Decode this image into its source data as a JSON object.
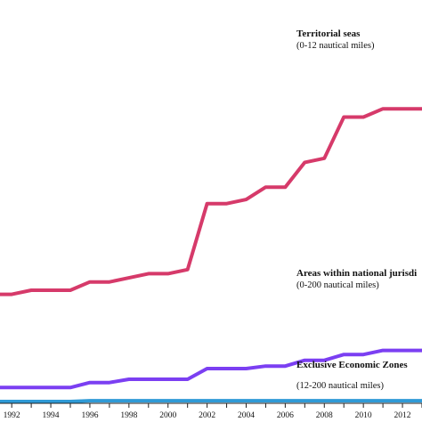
{
  "chart_data": {
    "type": "line",
    "xlim": [
      1991.4,
      2013.0
    ],
    "ylim": [
      0,
      420
    ],
    "x_ticks": [
      1992,
      1994,
      1996,
      1998,
      2000,
      2002,
      2004,
      2006,
      2008,
      2010,
      2012
    ],
    "grid": false,
    "legend": "none",
    "series": [
      {
        "name": "Territorial seas",
        "color": "#d63a6a",
        "x": [
          1991.4,
          1992,
          1993,
          1994,
          1995,
          1996,
          1997,
          1998,
          1999,
          2000,
          2001,
          2002,
          2003,
          2004,
          2005,
          2006,
          2007,
          2008,
          2009,
          2010,
          2011,
          2012,
          2013
        ],
        "y": [
          130,
          130,
          135,
          135,
          135,
          145,
          145,
          150,
          155,
          155,
          160,
          240,
          240,
          245,
          260,
          260,
          290,
          295,
          345,
          345,
          355,
          355,
          355
        ]
      },
      {
        "name": "Areas within national jurisdiction",
        "color": "#7b3ff2",
        "x": [
          1991.4,
          1992,
          1993,
          1994,
          1995,
          1996,
          1997,
          1998,
          1999,
          2000,
          2001,
          2002,
          2003,
          2004,
          2005,
          2006,
          2007,
          2008,
          2009,
          2010,
          2011,
          2012,
          2013
        ],
        "y": [
          17,
          17,
          17,
          17,
          17,
          23,
          23,
          27,
          27,
          27,
          27,
          40,
          40,
          40,
          43,
          43,
          50,
          50,
          57,
          57,
          62,
          62,
          62
        ]
      },
      {
        "name": "Exclusive Economic Zones",
        "color": "#2f9ad6",
        "x": [
          1991.4,
          1992,
          1993,
          1994,
          1995,
          1996,
          1997,
          1998,
          1999,
          2000,
          2001,
          2002,
          2003,
          2004,
          2005,
          2006,
          2007,
          2008,
          2009,
          2010,
          2011,
          2012,
          2013
        ],
        "y": [
          0,
          0,
          0,
          0,
          0,
          1,
          1,
          1,
          1,
          1,
          1,
          1,
          1,
          1,
          1,
          1,
          1,
          1,
          1,
          1,
          1,
          1,
          1
        ]
      }
    ],
    "annotations": [
      {
        "title": "Territorial seas",
        "subtitle": "(0-12 nautical miles)"
      },
      {
        "title": "Areas within national jurisdi",
        "subtitle": "(0-200 nautical miles)"
      },
      {
        "title": "Exclusive Economic Zones",
        "subtitle": "(12-200 nautical miles)"
      }
    ]
  }
}
